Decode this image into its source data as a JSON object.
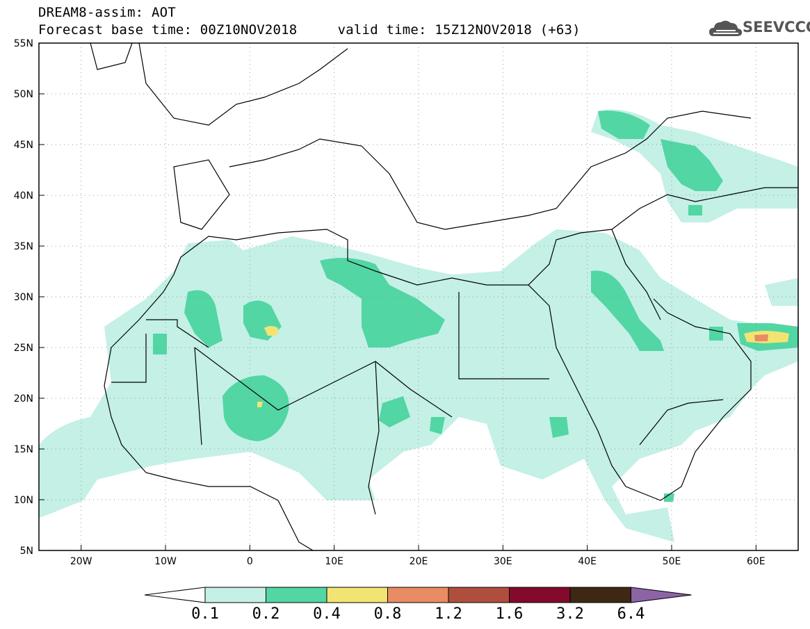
{
  "header": {
    "title_line1": "DREAM8-assim: AOT",
    "title_line2": "Forecast base time: 00Z10NOV2018     valid time: 15Z12NOV2018 (+63)",
    "logo_text": "SEEVCCC",
    "logo_icon": "cloud-icon"
  },
  "map": {
    "lon_range": [
      -25,
      65
    ],
    "lat_range": [
      5,
      55
    ],
    "lon_ticks": [
      {
        "value": -20,
        "label": "20W"
      },
      {
        "value": -10,
        "label": "10W"
      },
      {
        "value": 0,
        "label": "0"
      },
      {
        "value": 10,
        "label": "10E"
      },
      {
        "value": 20,
        "label": "20E"
      },
      {
        "value": 30,
        "label": "30E"
      },
      {
        "value": 40,
        "label": "40E"
      },
      {
        "value": 50,
        "label": "50E"
      },
      {
        "value": 60,
        "label": "60E"
      }
    ],
    "lat_ticks": [
      {
        "value": 55,
        "label": "55N"
      },
      {
        "value": 50,
        "label": "50N"
      },
      {
        "value": 45,
        "label": "45N"
      },
      {
        "value": 40,
        "label": "40N"
      },
      {
        "value": 35,
        "label": "35N"
      },
      {
        "value": 30,
        "label": "30N"
      },
      {
        "value": 25,
        "label": "25N"
      },
      {
        "value": 20,
        "label": "20N"
      },
      {
        "value": 15,
        "label": "15N"
      },
      {
        "value": 10,
        "label": "10N"
      },
      {
        "value": 5,
        "label": "5N"
      }
    ],
    "grid": "dotted",
    "colors": {
      "c01": "#c4f0e6",
      "c02": "#52d6a4",
      "c04": "#f2e472",
      "c08": "#e88c63",
      "c12": "#b04e3e",
      "c16": "#820a2d",
      "c32": "#3e2814",
      "c64": "#8c64a6"
    }
  },
  "colorbar": {
    "labels": [
      "0.1",
      "0.2",
      "0.4",
      "0.8",
      "1.2",
      "1.6",
      "3.2",
      "6.4"
    ],
    "colors": [
      "#ffffff",
      "#c4f0e6",
      "#52d6a4",
      "#f2e472",
      "#e88c63",
      "#b04e3e",
      "#820a2d",
      "#3e2814",
      "#8c64a6"
    ]
  }
}
